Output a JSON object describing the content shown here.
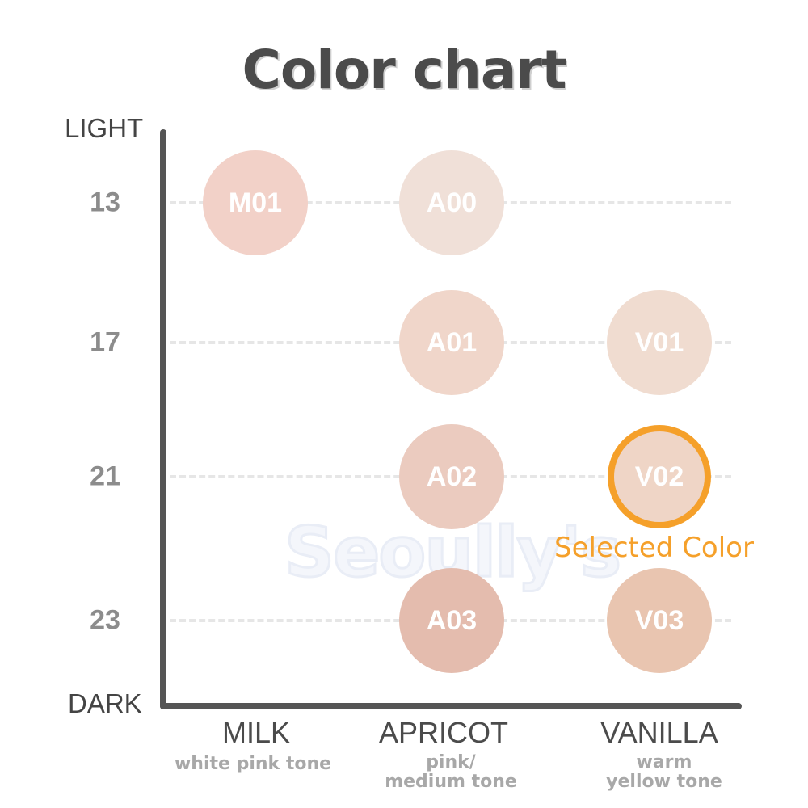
{
  "title": "Color chart",
  "y_axis": {
    "top_label": "LIGHT",
    "bottom_label": "DARK"
  },
  "levels": [
    "13",
    "17",
    "21",
    "23"
  ],
  "columns": [
    {
      "name": "MILK",
      "sub_line1": "white pink tone",
      "sub_line2": ""
    },
    {
      "name": "APRICOT",
      "sub_line1": "pink/",
      "sub_line2": "medium tone"
    },
    {
      "name": "VANILLA",
      "sub_line1": "warm",
      "sub_line2": "yellow tone"
    }
  ],
  "swatches": [
    {
      "code": "M01",
      "column": "MILK",
      "level": "13",
      "color": "#f2d1c8"
    },
    {
      "code": "A00",
      "column": "APRICOT",
      "level": "13",
      "color": "#f0e0d8"
    },
    {
      "code": "A01",
      "column": "APRICOT",
      "level": "17",
      "color": "#f0d6ca"
    },
    {
      "code": "V01",
      "column": "VANILLA",
      "level": "17",
      "color": "#f0dcd0"
    },
    {
      "code": "A02",
      "column": "APRICOT",
      "level": "21",
      "color": "#ebcbbf"
    },
    {
      "code": "V02",
      "column": "VANILLA",
      "level": "21",
      "color": "#efd5c6",
      "selected": true
    },
    {
      "code": "A03",
      "column": "APRICOT",
      "level": "23",
      "color": "#e4bcae"
    },
    {
      "code": "V03",
      "column": "VANILLA",
      "level": "23",
      "color": "#e9c5b0"
    }
  ],
  "selected_label": "Selected Color",
  "watermark": "Seoully's",
  "colors": {
    "accent": "#f5a02a",
    "axis": "#555555",
    "title": "#4b4b4b"
  }
}
